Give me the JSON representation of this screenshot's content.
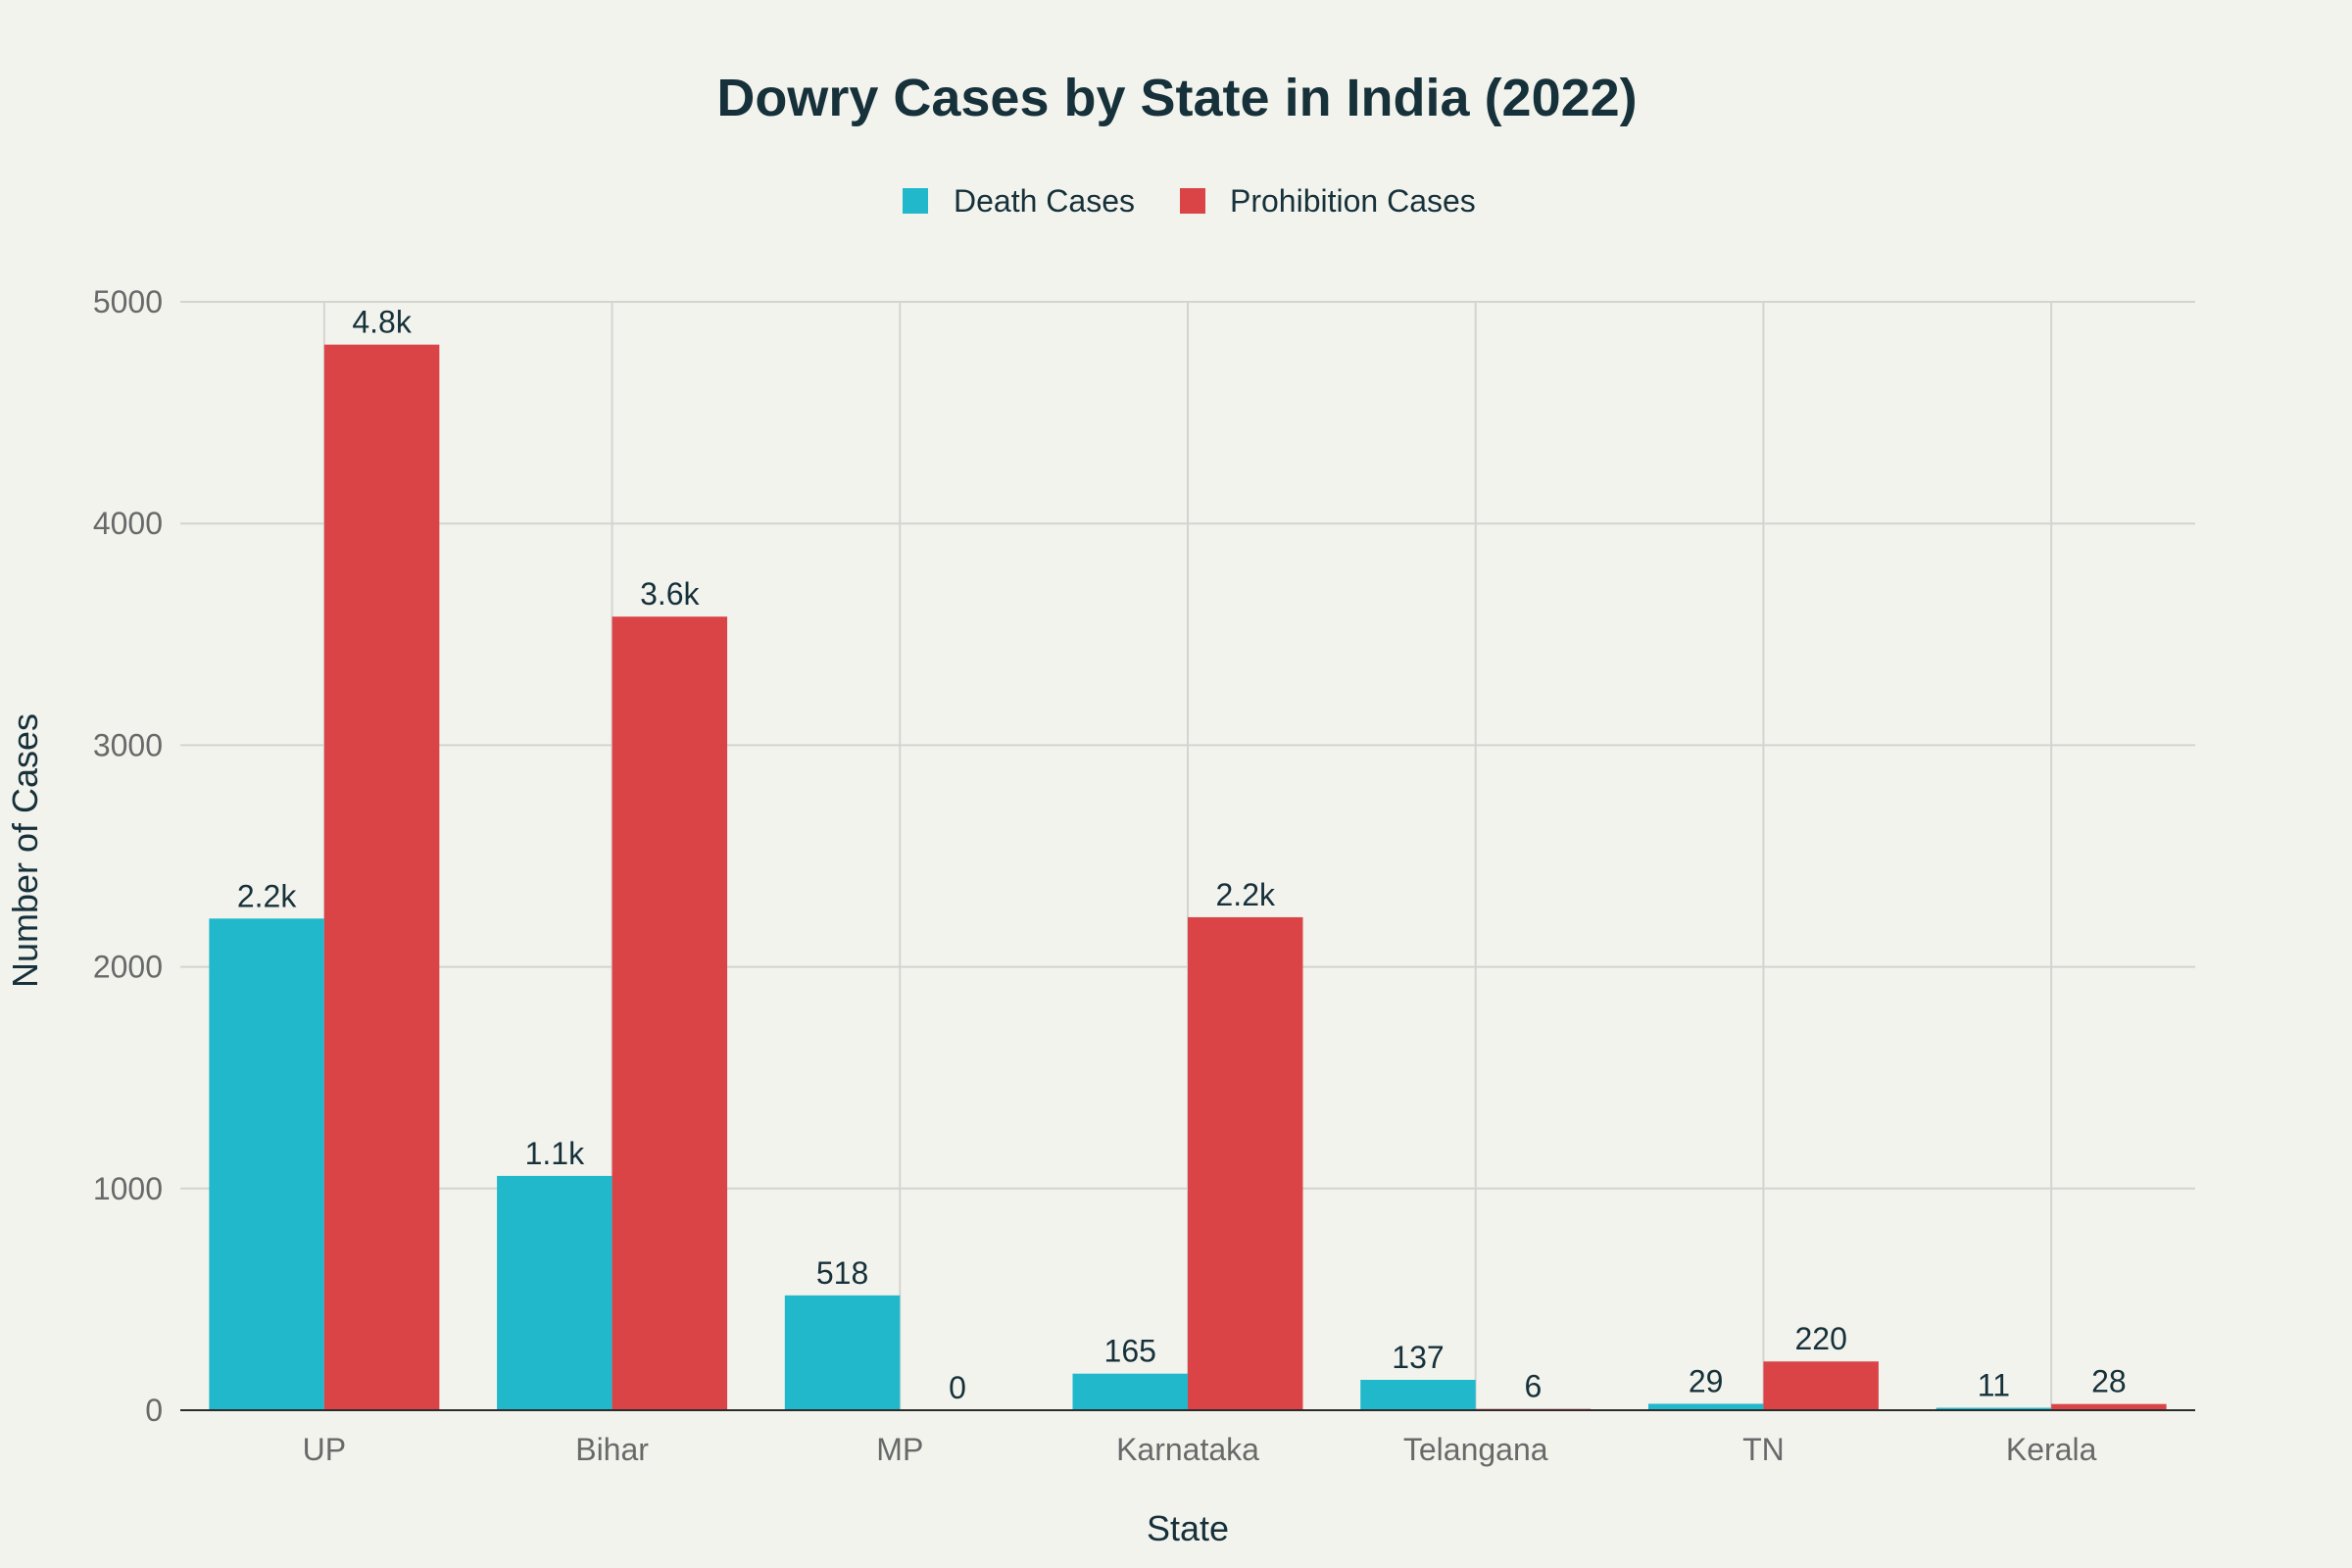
{
  "colors": {
    "background": "#f3f3ee",
    "grid": "#d3d4d0",
    "axis_line": "#2b2b2b",
    "tick_text": "#686a6a",
    "title_text": "#16313a",
    "death": "#21b8cc",
    "prohibition": "#db4447"
  },
  "chart_data": {
    "type": "bar",
    "title": "Dowry Cases by State in India (2022)",
    "xlabel": "State",
    "ylabel": "Number of Cases",
    "categories": [
      "UP",
      "Bihar",
      "MP",
      "Karnataka",
      "Telangana",
      "TN",
      "Kerala"
    ],
    "series": [
      {
        "name": "Death Cases",
        "color_key": "death",
        "values": [
          2218,
          1057,
          518,
          165,
          137,
          29,
          11
        ],
        "labels": [
          "2.2k",
          "1.1k",
          "518",
          "165",
          "137",
          "29",
          "11"
        ]
      },
      {
        "name": "Prohibition Cases",
        "color_key": "prohibition",
        "values": [
          4807,
          3580,
          0,
          2224,
          6,
          220,
          28
        ],
        "labels": [
          "4.8k",
          "3.6k",
          "0",
          "2.2k",
          "6",
          "220",
          "28"
        ]
      }
    ],
    "ylim": [
      0,
      5000
    ],
    "yticks": [
      "0",
      "1000",
      "2000",
      "3000",
      "4000",
      "5000"
    ],
    "grid": true,
    "legend_position": "top-center"
  }
}
